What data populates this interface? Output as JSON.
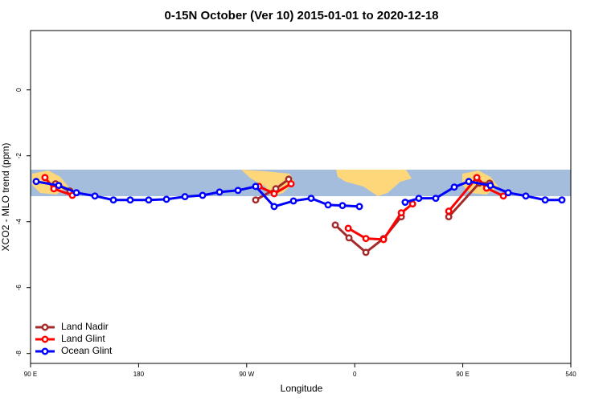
{
  "chart_data": {
    "type": "line",
    "title": "0-15N October (Ver 10)   2015-01-01 to 2020-12-18",
    "x_label": "Longitude",
    "y_label": "XCO2 - MLO trend (ppm)",
    "xlim": [
      90,
      540
    ],
    "ylim": [
      -8.3,
      1.8
    ],
    "xticks": [
      {
        "value": 90,
        "label": "90 E"
      },
      180,
      {
        "value": 270,
        "label": "90 W"
      },
      {
        "value": 360,
        "label": "0"
      },
      {
        "value": 450,
        "label": "90 E"
      },
      540
    ],
    "yticks": [
      0,
      -2,
      -4,
      -6,
      -8
    ],
    "legend": "bottom-left",
    "series": [
      {
        "name": "Land Nadir",
        "color": "#a52a2a",
        "x": [
          110.8,
          122.8,
          200,
          277.5,
          294.3,
          305.0,
          330,
          343.8,
          355.2,
          369.3,
          384.0,
          398.8,
          420,
          438.3,
          463.7,
          472.4
        ],
        "values": [
          -2.85,
          -3.07,
          null,
          -3.34,
          -3.0,
          -2.71,
          null,
          -4.1,
          -4.49,
          -4.93,
          -4.51,
          -3.85,
          null,
          -3.85,
          -2.83,
          -2.83
        ]
      },
      {
        "name": "Land Glint",
        "color": "#ff0000",
        "x": [
          102.0,
          109.4,
          124.8,
          200,
          280.2,
          292.9,
          307.0,
          330,
          354.6,
          369.3,
          384.0,
          398.8,
          408.2,
          420,
          438.3,
          461.7,
          469.8,
          483.8
        ],
        "values": [
          -2.66,
          -3.0,
          -3.2,
          null,
          -2.93,
          -3.15,
          -2.85,
          null,
          -4.2,
          -4.51,
          -4.54,
          -3.73,
          -3.46,
          null,
          -3.68,
          -2.66,
          -2.98,
          -3.22
        ]
      },
      {
        "name": "Ocean Glint",
        "color": "#0000ff",
        "x": [
          94.7,
          113.4,
          128.2,
          143.6,
          159.0,
          173.0,
          188.4,
          203.2,
          218.6,
          233.3,
          247.4,
          262.8,
          277.5,
          292.9,
          309.0,
          323.7,
          337.8,
          349.8,
          363.9,
          380,
          402.0,
          413.4,
          427.5,
          442.9,
          455.0,
          473.0,
          487.8,
          502.5,
          518.6,
          532.6
        ],
        "values": [
          -2.78,
          -2.9,
          -3.12,
          -3.22,
          -3.34,
          -3.34,
          -3.34,
          -3.32,
          -3.24,
          -3.2,
          -3.1,
          -3.05,
          -2.93,
          -3.54,
          -3.37,
          -3.29,
          -3.49,
          -3.51,
          -3.54,
          null,
          -3.41,
          -3.29,
          -3.29,
          -2.95,
          -2.78,
          -2.9,
          -3.12,
          -3.22,
          -3.34,
          -3.34
        ]
      }
    ]
  }
}
